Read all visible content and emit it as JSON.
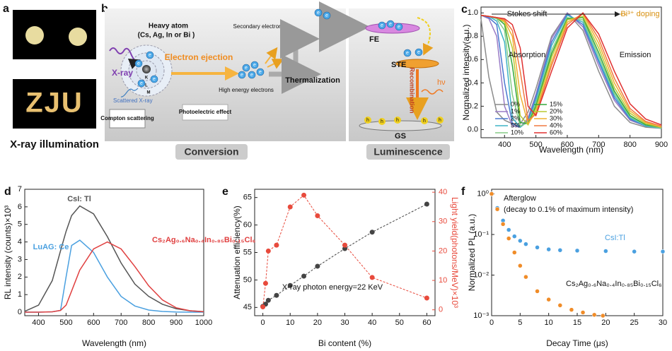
{
  "panel_a": {
    "label": "a",
    "photo_text": "ZJU",
    "caption": "X-ray illumination"
  },
  "panel_b": {
    "label": "b",
    "heavy_atom": "Heavy atom",
    "atom_types": "(Cs, Ag, In or Bi )",
    "xray": "X-ray",
    "scattered": "Scattered X-ray",
    "compton": "Compton scattering",
    "shells": [
      "K",
      "L",
      "M"
    ],
    "ejection": "Electron ejection",
    "photoelectric": "Photoelectric effect",
    "high_energy": "High energy electrons",
    "secondary": "Secondary electrons",
    "thermalization": "Thermalization",
    "fe": "FE",
    "ste": "STE",
    "recombination": "Recombination",
    "photon": "hν",
    "gs": "GS",
    "electron": "e",
    "hole": "h",
    "conversion": "Conversion",
    "luminescence": "Luminescence"
  },
  "chart_data": [
    {
      "type": "line",
      "panel": "c",
      "x_label": "Wavelength (nm)",
      "y_label": "Normalized intensity(a.u.)",
      "annotations": [
        "Stokes shift",
        "Bi³⁺ doping",
        "Absorption",
        "Emission"
      ],
      "x": [
        325,
        350,
        375,
        400,
        425,
        450,
        475,
        500,
        550,
        600,
        650,
        700,
        750,
        800,
        850,
        900
      ],
      "series": [
        {
          "name": "0%",
          "color": "#8c8c8c",
          "values": [
            0.95,
            0.45,
            0.15,
            0.08,
            0.05,
            0.05,
            0.15,
            0.35,
            0.8,
            1.0,
            0.85,
            0.5,
            0.2,
            0.06,
            0.02,
            0.01
          ]
        },
        {
          "name": "1%",
          "color": "#9a7cc6",
          "values": [
            0.98,
            0.95,
            0.8,
            0.2,
            0.03,
            0.02,
            0.1,
            0.3,
            0.78,
            1.0,
            0.88,
            0.55,
            0.25,
            0.08,
            0.03,
            0.01
          ]
        },
        {
          "name": "2%",
          "color": "#4a78d0",
          "values": [
            0.98,
            0.96,
            0.9,
            0.4,
            0.05,
            0.02,
            0.08,
            0.28,
            0.75,
            0.99,
            0.9,
            0.58,
            0.27,
            0.09,
            0.03,
            0.01
          ]
        },
        {
          "name": "5%",
          "color": "#3fb3c6",
          "values": [
            0.98,
            0.97,
            0.93,
            0.75,
            0.1,
            0.02,
            0.07,
            0.25,
            0.72,
            0.98,
            0.92,
            0.6,
            0.29,
            0.1,
            0.03,
            0.01
          ]
        },
        {
          "name": "10%",
          "color": "#86cc86",
          "values": [
            0.98,
            0.97,
            0.95,
            0.85,
            0.3,
            0.03,
            0.06,
            0.22,
            0.68,
            0.96,
            0.94,
            0.63,
            0.31,
            0.11,
            0.04,
            0.01
          ]
        },
        {
          "name": "15%",
          "color": "#35a83c",
          "values": [
            0.98,
            0.97,
            0.96,
            0.9,
            0.55,
            0.06,
            0.05,
            0.2,
            0.65,
            0.95,
            0.96,
            0.66,
            0.33,
            0.12,
            0.04,
            0.02
          ]
        },
        {
          "name": "20%",
          "color": "#b8c832",
          "values": [
            0.98,
            0.97,
            0.96,
            0.92,
            0.7,
            0.12,
            0.04,
            0.18,
            0.62,
            0.94,
            0.97,
            0.7,
            0.36,
            0.14,
            0.05,
            0.02
          ]
        },
        {
          "name": "30%",
          "color": "#f0b030",
          "values": [
            0.98,
            0.97,
            0.96,
            0.93,
            0.8,
            0.3,
            0.05,
            0.15,
            0.58,
            0.92,
            0.99,
            0.74,
            0.4,
            0.16,
            0.06,
            0.02
          ]
        },
        {
          "name": "40%",
          "color": "#f07a40",
          "values": [
            0.98,
            0.97,
            0.96,
            0.94,
            0.85,
            0.5,
            0.08,
            0.13,
            0.55,
            0.9,
            1.0,
            0.78,
            0.44,
            0.18,
            0.07,
            0.03
          ]
        },
        {
          "name": "60%",
          "color": "#e03030",
          "values": [
            0.98,
            0.97,
            0.96,
            0.95,
            0.9,
            0.7,
            0.2,
            0.12,
            0.5,
            0.87,
            1.0,
            0.82,
            0.5,
            0.22,
            0.09,
            0.04
          ]
        }
      ],
      "xlim": [
        325,
        900
      ],
      "xticks": [
        400,
        500,
        600,
        700,
        800,
        900
      ],
      "ylim": [
        -0.07,
        1.05
      ],
      "yticks": [
        {
          "value": 0,
          "label": "0.0"
        },
        0.2,
        0.4,
        0.6,
        0.8,
        {
          "value": 1,
          "label": "1.0"
        }
      ],
      "legend": "lower center"
    },
    {
      "type": "line",
      "panel": "d",
      "x_label": "Wavelength (nm)",
      "y_label": "RL intensity (counts)×10³",
      "x": [
        350,
        400,
        450,
        480,
        500,
        520,
        550,
        600,
        650,
        700,
        750,
        800,
        850,
        900,
        950,
        1000
      ],
      "series": [
        {
          "name": "CsI: Tl",
          "color": "#555555",
          "values": [
            0.05,
            0.4,
            1.8,
            3.5,
            4.6,
            5.5,
            6.05,
            5.6,
            4.3,
            2.8,
            1.6,
            0.9,
            0.45,
            0.2,
            0.08,
            0.03
          ]
        },
        {
          "name": "LuAG: Ce",
          "color": "#4aa0e0",
          "values": [
            0,
            0,
            0.02,
            0.1,
            2.0,
            3.8,
            4.1,
            3.4,
            2.0,
            0.9,
            0.35,
            0.12,
            0.04,
            0.01,
            0,
            0
          ]
        },
        {
          "name": "Cs₂Ag₀.₆Na₀.₄In₀.₈₅Bi₀.₁₅Cl₆",
          "color": "#e04040",
          "values": [
            0,
            0,
            0.02,
            0.1,
            0.4,
            1.2,
            2.4,
            3.6,
            4.0,
            3.6,
            2.6,
            1.5,
            0.7,
            0.25,
            0.08,
            0.02
          ]
        }
      ],
      "xlim": [
        350,
        1000
      ],
      "xticks": [
        400,
        500,
        600,
        700,
        800,
        900,
        1000
      ],
      "ylim": [
        -0.2,
        7
      ],
      "yticks": [
        0,
        1,
        2,
        3,
        4,
        5,
        6,
        7
      ]
    },
    {
      "type": "scatter",
      "panel": "e",
      "x_label": "Bi content (%)",
      "y_label": "Attenuation efficiency(%)",
      "y2_label": "Light yield(photons/MeV)×10³",
      "annotations": [
        "X-ray photon energy=22 KeV"
      ],
      "x": [
        0,
        1,
        2,
        5,
        10,
        15,
        20,
        30,
        40,
        60
      ],
      "series": [
        {
          "name": "Attenuation efficiency",
          "color": "#444444",
          "values": [
            45.2,
            45.6,
            46.3,
            47.2,
            49,
            50.7,
            52.5,
            55.7,
            58.7,
            63.8
          ]
        },
        {
          "name": "Light yield",
          "color": "#e84a3c",
          "axis": "y2",
          "values": [
            1,
            9,
            20,
            22,
            35,
            39,
            32,
            22,
            11,
            4
          ]
        }
      ],
      "xlim": [
        -3,
        63
      ],
      "xticks": [
        0,
        10,
        20,
        30,
        40,
        50,
        60
      ],
      "ylim": [
        43.5,
        66.5
      ],
      "yticks": [
        45,
        50,
        55,
        60,
        65
      ],
      "y2lim": [
        -2,
        41
      ],
      "y2ticks": [
        0,
        10,
        20,
        30,
        40
      ]
    },
    {
      "type": "scatter",
      "panel": "f",
      "x_label": "Decay Time (μs)",
      "y_label": "Normalized PL (a.u.)",
      "annotations": [
        "Afterglow",
        "(decay to 0.1% of maximum intensity)",
        "CsI:Tl",
        "Cs₂Ag₀.₆Na₀.₄In₀.₈₅Bi₀.₁₅Cl₆"
      ],
      "log_y": true,
      "series": [
        {
          "name": "CsI:Tl",
          "color": "#4aa0e0",
          "x": [
            0,
            1,
            2,
            3,
            4,
            5,
            6,
            8,
            10,
            12,
            15,
            20,
            25,
            30
          ],
          "values": [
            1,
            0.45,
            0.22,
            0.13,
            0.09,
            0.07,
            0.058,
            0.048,
            0.043,
            0.041,
            0.04,
            0.039,
            0.038,
            0.038
          ]
        },
        {
          "name": "Cs₂Ag₀.₆Na₀.₄In₀.₈₅Bi₀.₁₅Cl₆",
          "color": "#f08c28",
          "x": [
            0,
            1,
            2,
            3,
            4,
            5,
            6,
            8,
            10,
            12,
            14,
            16,
            18,
            19.5
          ],
          "values": [
            1,
            0.42,
            0.18,
            0.08,
            0.036,
            0.017,
            0.009,
            0.004,
            0.0025,
            0.0018,
            0.0014,
            0.0012,
            0.00105,
            0.001
          ]
        }
      ],
      "xlim": [
        0,
        30
      ],
      "xticks": [
        0,
        5,
        10,
        15,
        20,
        25,
        30
      ],
      "ylim": [
        0.001,
        1.3
      ],
      "yticks": [
        {
          "value": 0.001,
          "label": "10⁻³"
        },
        {
          "value": 0.01,
          "label": "10⁻²"
        },
        {
          "value": 0.1,
          "label": "10⁻¹"
        },
        {
          "value": 1,
          "label": "10⁰"
        }
      ]
    }
  ]
}
